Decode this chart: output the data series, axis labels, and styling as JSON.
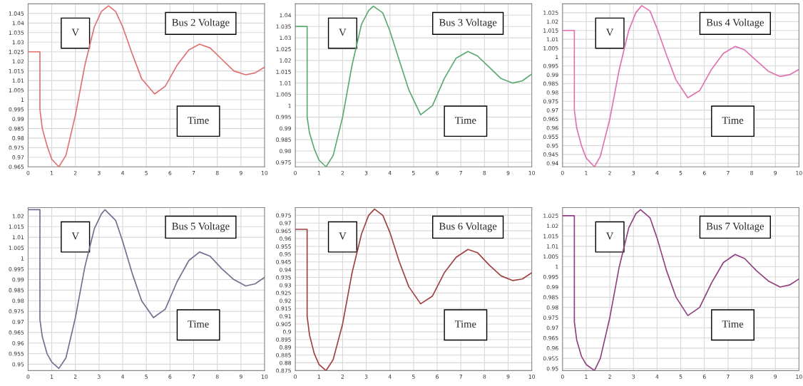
{
  "chart_data": [
    {
      "type": "line",
      "title": "Bus 2 Voltage",
      "xlabel": "Time",
      "ylabel": "V",
      "grid": true,
      "xlim": [
        0,
        10
      ],
      "xticks": [
        0,
        1,
        2,
        3,
        4,
        5,
        6,
        7,
        8,
        9,
        10
      ],
      "ylim": [
        0.965,
        1.05
      ],
      "yticks": [
        0.965,
        0.97,
        0.975,
        0.98,
        0.985,
        0.99,
        0.995,
        1,
        1.005,
        1.01,
        1.015,
        1.02,
        1.025,
        1.03,
        1.035,
        1.04,
        1.045
      ],
      "x": [
        0,
        0.5,
        0.5,
        0.6,
        0.8,
        1.0,
        1.3,
        1.6,
        2.0,
        2.4,
        2.8,
        3.1,
        3.4,
        3.7,
        4.0,
        4.4,
        4.8,
        5.35,
        5.8,
        6.3,
        6.8,
        7.25,
        7.7,
        8.2,
        8.7,
        9.2,
        9.6,
        10
      ],
      "series": [
        {
          "color": "#e07070",
          "values": [
            1.025,
            1.025,
            0.995,
            0.985,
            0.976,
            0.969,
            0.965,
            0.971,
            0.992,
            1.018,
            1.038,
            1.046,
            1.049,
            1.046,
            1.038,
            1.024,
            1.011,
            1.003,
            1.007,
            1.018,
            1.026,
            1.029,
            1.027,
            1.021,
            1.015,
            1.013,
            1.014,
            1.017
          ]
        }
      ]
    },
    {
      "type": "line",
      "title": "Bus 3 Voltage",
      "xlabel": "Time",
      "ylabel": "V",
      "grid": true,
      "xlim": [
        0,
        10
      ],
      "xticks": [
        0,
        1,
        2,
        3,
        4,
        5,
        6,
        7,
        8,
        9,
        10
      ],
      "ylim": [
        0.973,
        1.045
      ],
      "yticks": [
        0.975,
        0.98,
        0.985,
        0.99,
        0.995,
        1,
        1.005,
        1.01,
        1.015,
        1.02,
        1.025,
        1.03,
        1.035,
        1.04
      ],
      "x": [
        0,
        0.5,
        0.5,
        0.6,
        0.8,
        1.0,
        1.3,
        1.6,
        2.0,
        2.4,
        2.8,
        3.1,
        3.3,
        3.7,
        4.0,
        4.4,
        4.8,
        5.3,
        5.8,
        6.3,
        6.8,
        7.3,
        7.7,
        8.2,
        8.7,
        9.2,
        9.6,
        10
      ],
      "series": [
        {
          "color": "#5aaa70",
          "values": [
            1.035,
            1.035,
            0.995,
            0.988,
            0.981,
            0.976,
            0.973,
            0.978,
            0.995,
            1.018,
            1.036,
            1.042,
            1.044,
            1.041,
            1.033,
            1.02,
            1.007,
            0.996,
            1.0,
            1.012,
            1.021,
            1.024,
            1.022,
            1.017,
            1.012,
            1.01,
            1.011,
            1.014
          ]
        }
      ]
    },
    {
      "type": "line",
      "title": "Bus 4 Voltage",
      "xlabel": "Time",
      "ylabel": "V",
      "grid": true,
      "xlim": [
        0,
        10
      ],
      "xticks": [
        0,
        1,
        2,
        3,
        4,
        5,
        6,
        7,
        8,
        9,
        10
      ],
      "ylim": [
        0.938,
        1.03
      ],
      "yticks": [
        0.94,
        0.945,
        0.95,
        0.955,
        0.96,
        0.965,
        0.97,
        0.975,
        0.98,
        0.985,
        0.99,
        0.995,
        1,
        1.005,
        1.01,
        1.015,
        1.02,
        1.025
      ],
      "x": [
        0,
        0.5,
        0.5,
        0.6,
        0.8,
        1.0,
        1.35,
        1.6,
        2.0,
        2.4,
        2.8,
        3.1,
        3.35,
        3.7,
        4.0,
        4.4,
        4.8,
        5.3,
        5.8,
        6.3,
        6.8,
        7.3,
        7.7,
        8.2,
        8.7,
        9.2,
        9.6,
        10
      ],
      "series": [
        {
          "color": "#e070b0",
          "values": [
            1.015,
            1.015,
            0.97,
            0.96,
            0.95,
            0.943,
            0.938,
            0.944,
            0.965,
            0.993,
            1.015,
            1.025,
            1.029,
            1.026,
            1.016,
            1.001,
            0.987,
            0.977,
            0.981,
            0.993,
            1.002,
            1.006,
            1.004,
            0.998,
            0.992,
            0.989,
            0.99,
            0.993
          ]
        }
      ]
    },
    {
      "type": "line",
      "title": "Bus 5 Voltage",
      "xlabel": "Time",
      "ylabel": "V",
      "grid": true,
      "xlim": [
        0,
        10
      ],
      "xticks": [
        0,
        1,
        2,
        3,
        4,
        5,
        6,
        7,
        8,
        9,
        10
      ],
      "ylim": [
        0.947,
        1.024
      ],
      "yticks": [
        0.95,
        0.955,
        0.96,
        0.965,
        0.97,
        0.975,
        0.98,
        0.985,
        0.99,
        0.995,
        1,
        1.005,
        1.01,
        1.015,
        1.02
      ],
      "x": [
        0,
        0.5,
        0.5,
        0.6,
        0.8,
        1.0,
        1.3,
        1.6,
        2.0,
        2.4,
        2.8,
        3.1,
        3.25,
        3.7,
        4.0,
        4.4,
        4.8,
        5.3,
        5.8,
        6.3,
        6.8,
        7.25,
        7.7,
        8.2,
        8.7,
        9.2,
        9.6,
        10
      ],
      "series": [
        {
          "color": "#707090",
          "values": [
            1.023,
            1.023,
            0.971,
            0.963,
            0.955,
            0.951,
            0.948,
            0.953,
            0.972,
            0.996,
            1.014,
            1.021,
            1.023,
            1.018,
            1.008,
            0.993,
            0.98,
            0.972,
            0.976,
            0.989,
            0.999,
            1.003,
            1.001,
            0.995,
            0.99,
            0.987,
            0.988,
            0.991
          ]
        }
      ]
    },
    {
      "type": "line",
      "title": "Bus 6 Voltage",
      "xlabel": "Time",
      "ylabel": "V",
      "grid": true,
      "xlim": [
        0,
        10
      ],
      "xticks": [
        0,
        1,
        2,
        3,
        4,
        5,
        6,
        7,
        8,
        9,
        10
      ],
      "ylim": [
        0.875,
        0.98
      ],
      "yticks": [
        0.875,
        0.88,
        0.885,
        0.89,
        0.895,
        0.9,
        0.905,
        0.91,
        0.915,
        0.92,
        0.925,
        0.93,
        0.935,
        0.94,
        0.945,
        0.95,
        0.955,
        0.96,
        0.965,
        0.97,
        0.975
      ],
      "x": [
        0,
        0.5,
        0.5,
        0.6,
        0.8,
        1.0,
        1.3,
        1.6,
        2.0,
        2.4,
        2.8,
        3.1,
        3.35,
        3.7,
        4.0,
        4.4,
        4.8,
        5.3,
        5.8,
        6.3,
        6.8,
        7.3,
        7.7,
        8.2,
        8.7,
        9.2,
        9.6,
        10
      ],
      "series": [
        {
          "color": "#a04040",
          "values": [
            0.966,
            0.966,
            0.91,
            0.898,
            0.886,
            0.879,
            0.875,
            0.882,
            0.905,
            0.938,
            0.963,
            0.975,
            0.979,
            0.975,
            0.964,
            0.945,
            0.929,
            0.918,
            0.923,
            0.938,
            0.948,
            0.953,
            0.951,
            0.943,
            0.936,
            0.933,
            0.934,
            0.938
          ]
        }
      ]
    },
    {
      "type": "line",
      "title": "Bus 7 Voltage",
      "xlabel": "Time",
      "ylabel": "V",
      "grid": true,
      "xlim": [
        0,
        10
      ],
      "xticks": [
        0,
        1,
        2,
        3,
        4,
        5,
        6,
        7,
        8,
        9,
        10
      ],
      "ylim": [
        0.949,
        1.029
      ],
      "yticks": [
        0.95,
        0.955,
        0.96,
        0.965,
        0.97,
        0.975,
        0.98,
        0.985,
        0.99,
        0.995,
        1,
        1.005,
        1.01,
        1.015,
        1.02,
        1.025
      ],
      "x": [
        0,
        0.5,
        0.5,
        0.6,
        0.8,
        1.0,
        1.35,
        1.6,
        2.0,
        2.4,
        2.8,
        3.1,
        3.3,
        3.7,
        4.0,
        4.4,
        4.8,
        5.3,
        5.8,
        6.3,
        6.8,
        7.3,
        7.7,
        8.2,
        8.7,
        9.2,
        9.6,
        10
      ],
      "series": [
        {
          "color": "#904080",
          "values": [
            1.025,
            1.025,
            0.973,
            0.964,
            0.956,
            0.952,
            0.949,
            0.955,
            0.975,
            1.0,
            1.019,
            1.026,
            1.028,
            1.024,
            1.014,
            0.998,
            0.985,
            0.976,
            0.98,
            0.992,
            1.002,
            1.006,
            1.004,
            0.998,
            0.993,
            0.99,
            0.991,
            0.994
          ]
        }
      ]
    }
  ]
}
